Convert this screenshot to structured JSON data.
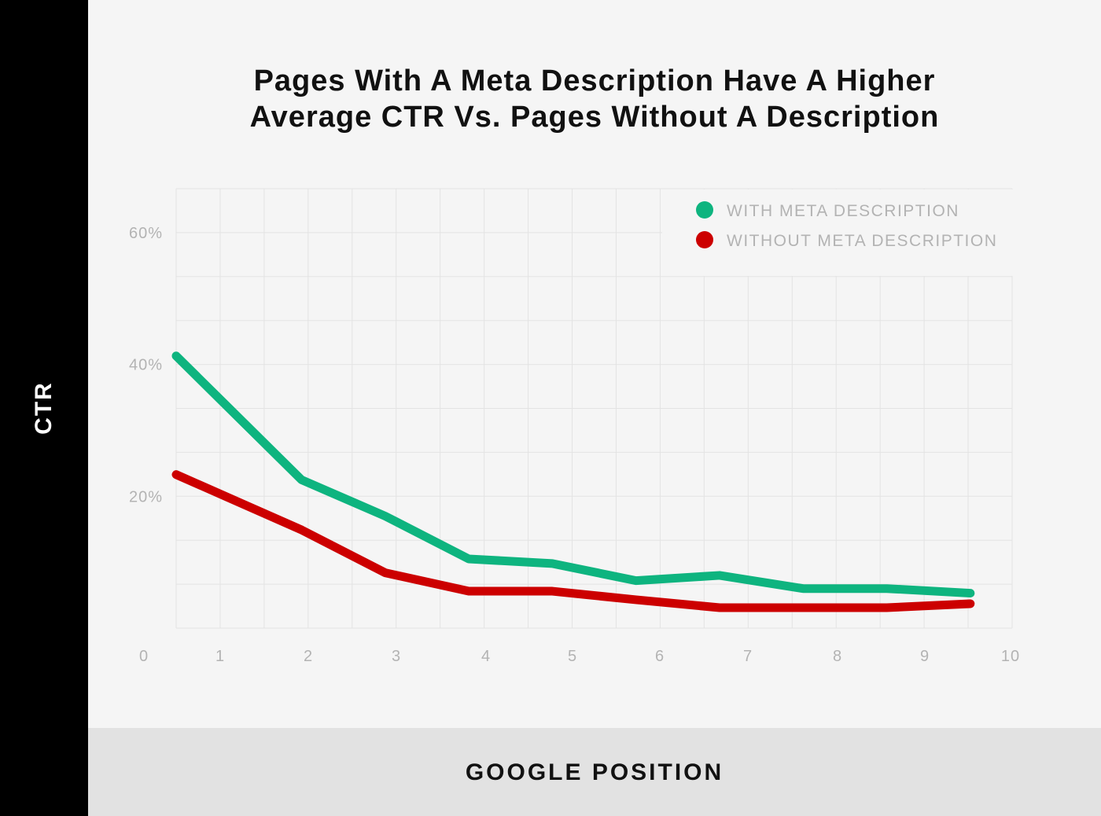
{
  "title_line1": "Pages With A Meta Description Have A Higher",
  "title_line2": "Average CTR Vs. Pages Without A Description",
  "ylabel": "CTR",
  "xlabel": "GOOGLE POSITION",
  "colors": {
    "with": "#0eb47f",
    "without": "#cc0000",
    "grid": "#e3e3e3",
    "tick": "#b3b3b3"
  },
  "chart_data": {
    "type": "line",
    "title": "Pages With A Meta Description Have A Higher Average CTR Vs. Pages Without A Description",
    "xlabel": "GOOGLE POSITION",
    "ylabel": "CTR",
    "x_ticks": [
      "0",
      "1",
      "2",
      "3",
      "4",
      "5",
      "6",
      "7",
      "8",
      "9",
      "10"
    ],
    "y_ticks": [
      "20%",
      "40%",
      "60%"
    ],
    "xlim": [
      0,
      10
    ],
    "ylim": [
      0,
      66
    ],
    "grid": true,
    "legend_position": "top-right",
    "series": [
      {
        "name": "WITH META DESCRIPTION",
        "color": "#0eb47f",
        "x": [
          0,
          1.5,
          2.5,
          3.5,
          4.5,
          5.5,
          6.5,
          7.5,
          8.5,
          9.5
        ],
        "y": [
          41.3,
          22.5,
          17,
          10.5,
          9.8,
          7.2,
          8,
          6,
          6,
          5.3
        ]
      },
      {
        "name": "WITHOUT META DESCRIPTION",
        "color": "#cc0000",
        "x": [
          0,
          1.5,
          2.5,
          3.5,
          4.5,
          5.5,
          6.5,
          7.5,
          8.5,
          9.5
        ],
        "y": [
          23.3,
          14.9,
          8.4,
          5.6,
          5.6,
          4.3,
          3.1,
          3.1,
          3.1,
          3.7
        ]
      }
    ]
  }
}
